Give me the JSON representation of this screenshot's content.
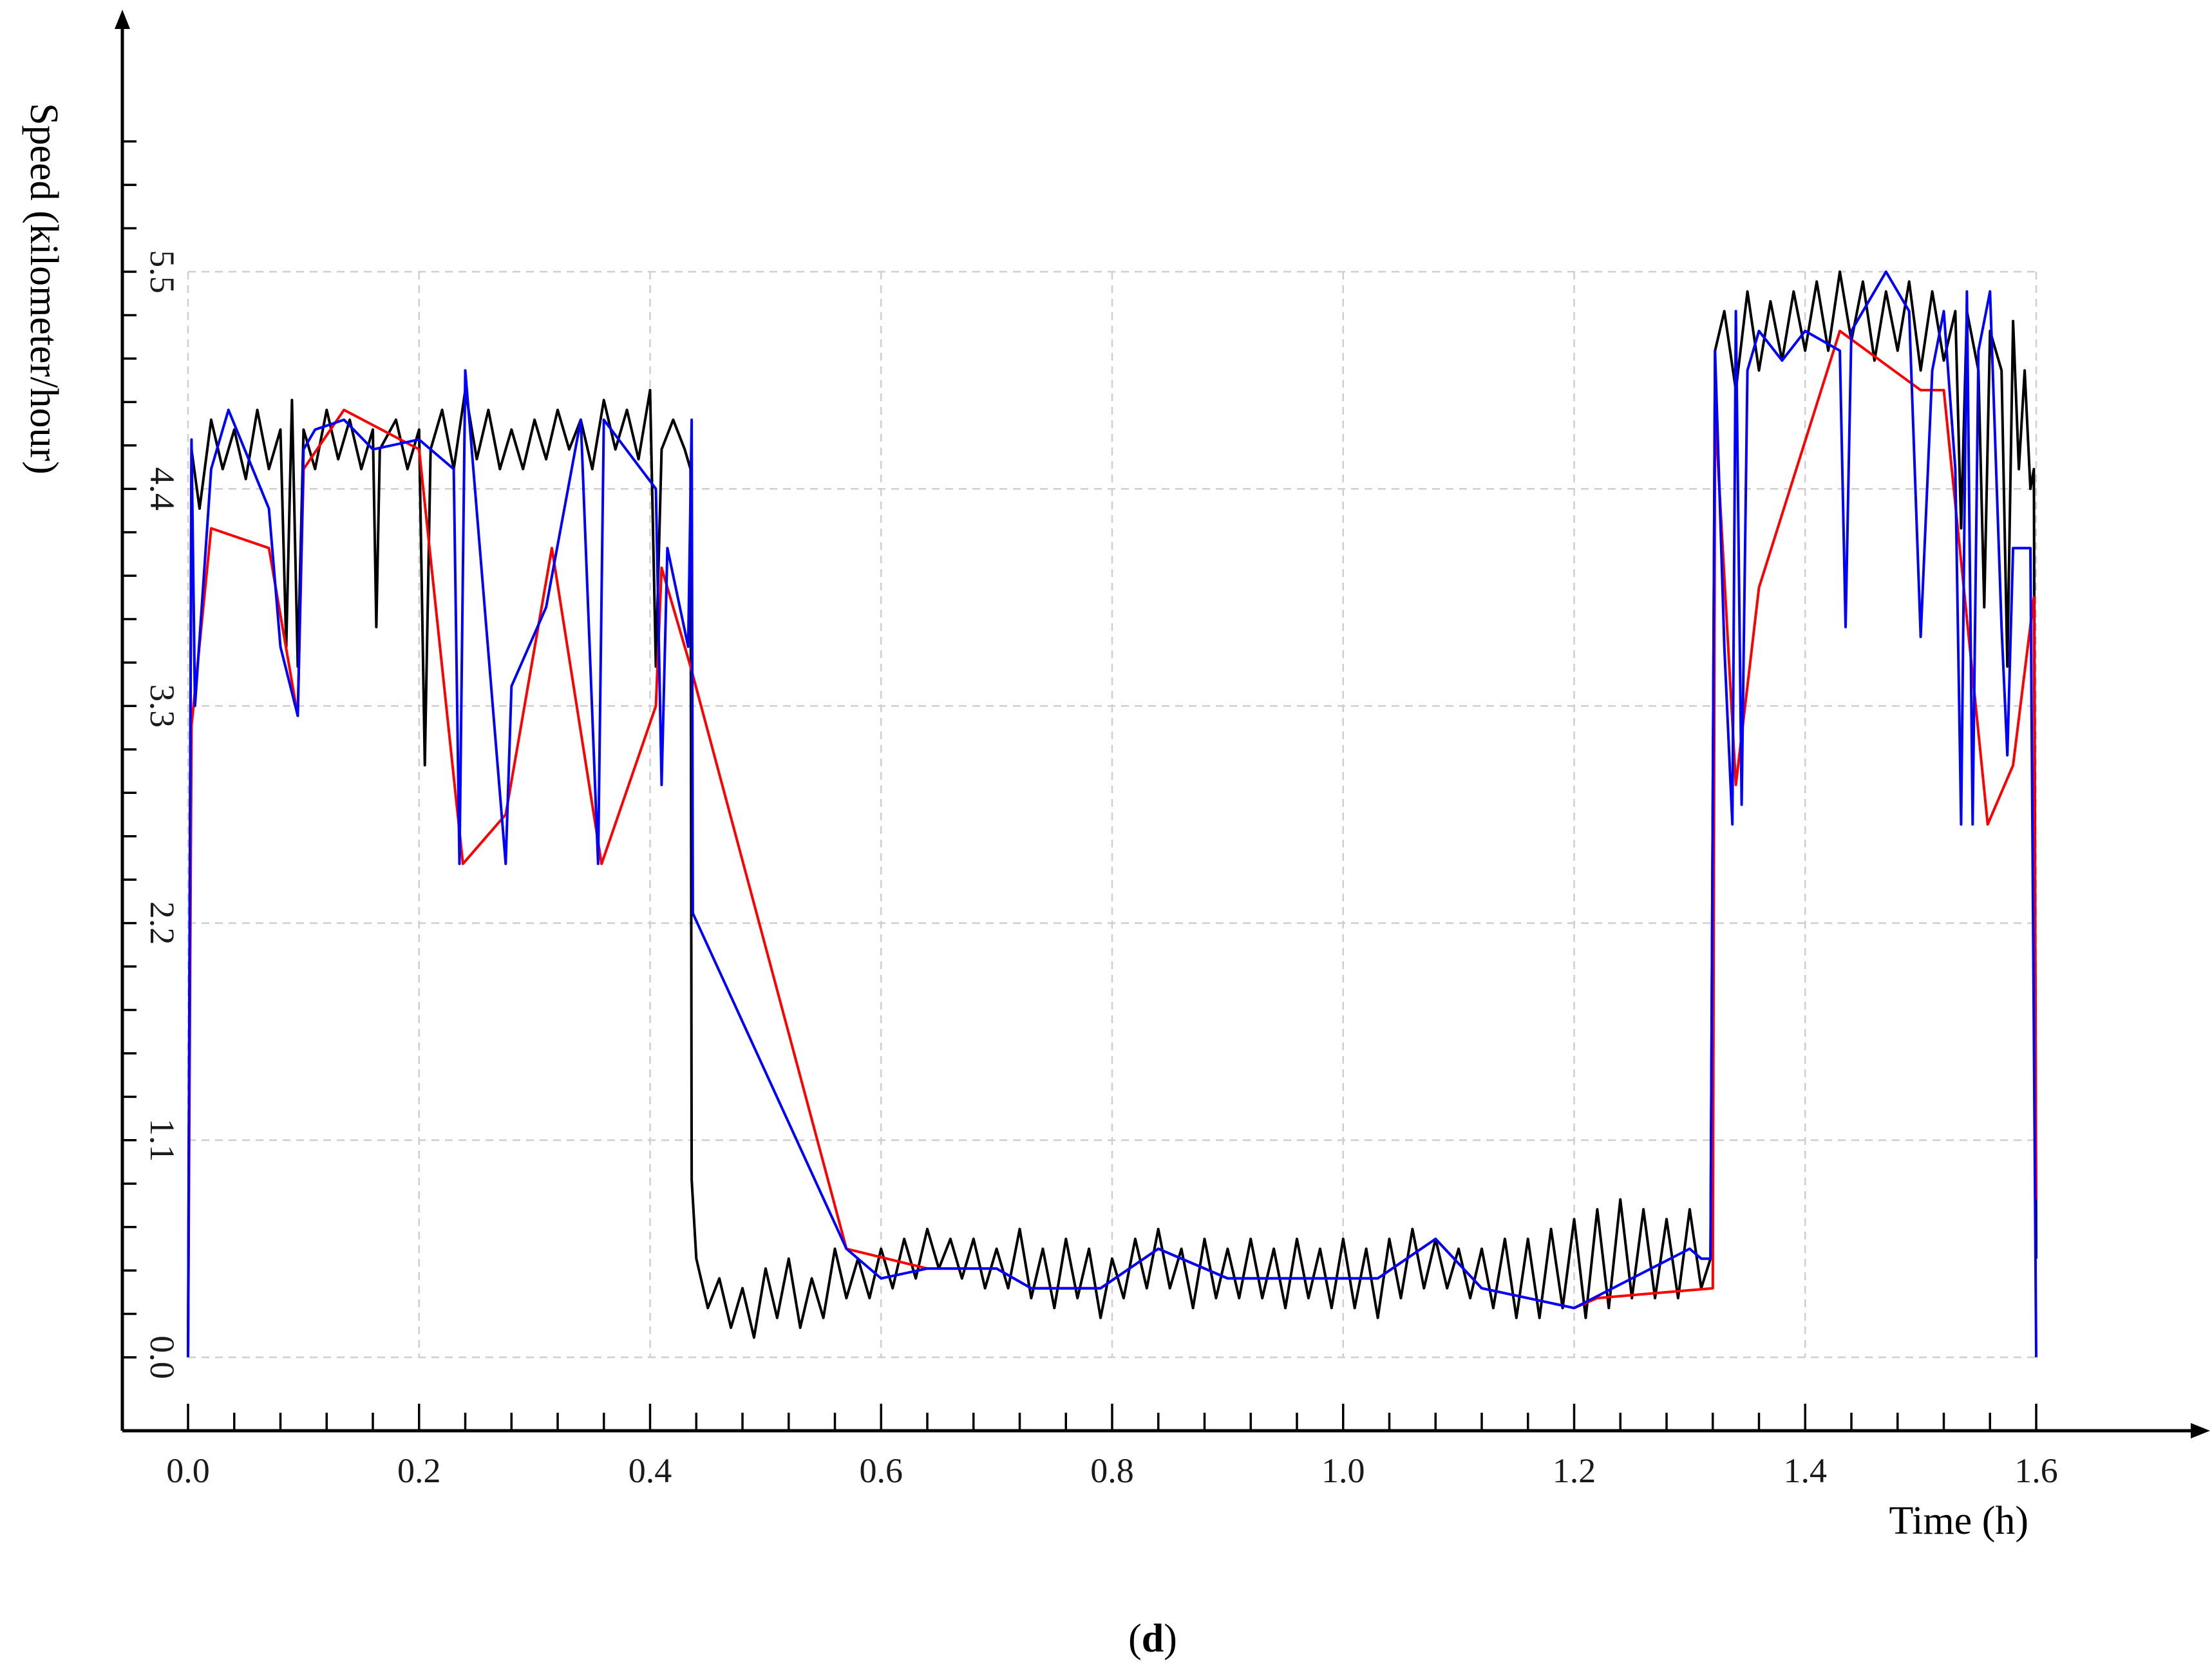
{
  "chart_data": {
    "type": "line",
    "title": "",
    "xlabel": "Time (h)",
    "ylabel": "Speed (kilometer/hour)",
    "caption": {
      "open": "(",
      "letter": "d",
      "close": ")"
    },
    "xlim": [
      0.0,
      1.6
    ],
    "ylim": [
      0.0,
      5.5
    ],
    "x_ticks": [
      0.0,
      0.2,
      0.4,
      0.6,
      0.8,
      1.0,
      1.2,
      1.4,
      1.6
    ],
    "x_tick_labels": [
      "0.0",
      "0.2",
      "0.4",
      "0.6",
      "0.8",
      "1.0",
      "1.2",
      "1.4",
      "1.6"
    ],
    "y_ticks": [
      0.0,
      1.1,
      2.2,
      3.3,
      4.4,
      5.5
    ],
    "y_tick_labels": [
      "0.0",
      "1.1",
      "2.2",
      "3.3",
      "4.4",
      "5.5"
    ],
    "grid": true,
    "legend": "none",
    "series": [
      {
        "color": "#000000",
        "values": [
          [
            0.0,
            0.0
          ],
          [
            0.003,
            4.6
          ],
          [
            0.01,
            4.3
          ],
          [
            0.02,
            4.75
          ],
          [
            0.03,
            4.5
          ],
          [
            0.04,
            4.7
          ],
          [
            0.05,
            4.45
          ],
          [
            0.06,
            4.8
          ],
          [
            0.07,
            4.5
          ],
          [
            0.08,
            4.7
          ],
          [
            0.085,
            3.6
          ],
          [
            0.09,
            4.85
          ],
          [
            0.095,
            3.5
          ],
          [
            0.1,
            4.7
          ],
          [
            0.11,
            4.5
          ],
          [
            0.12,
            4.8
          ],
          [
            0.13,
            4.55
          ],
          [
            0.14,
            4.75
          ],
          [
            0.15,
            4.5
          ],
          [
            0.16,
            4.7
          ],
          [
            0.163,
            3.7
          ],
          [
            0.166,
            4.6
          ],
          [
            0.18,
            4.75
          ],
          [
            0.19,
            4.5
          ],
          [
            0.2,
            4.7
          ],
          [
            0.205,
            3.0
          ],
          [
            0.21,
            4.6
          ],
          [
            0.22,
            4.8
          ],
          [
            0.23,
            4.5
          ],
          [
            0.24,
            4.9
          ],
          [
            0.25,
            4.55
          ],
          [
            0.26,
            4.8
          ],
          [
            0.27,
            4.5
          ],
          [
            0.28,
            4.7
          ],
          [
            0.29,
            4.5
          ],
          [
            0.3,
            4.75
          ],
          [
            0.31,
            4.55
          ],
          [
            0.32,
            4.8
          ],
          [
            0.33,
            4.6
          ],
          [
            0.34,
            4.75
          ],
          [
            0.35,
            4.5
          ],
          [
            0.36,
            4.85
          ],
          [
            0.37,
            4.6
          ],
          [
            0.38,
            4.8
          ],
          [
            0.39,
            4.55
          ],
          [
            0.4,
            4.9
          ],
          [
            0.405,
            3.5
          ],
          [
            0.41,
            4.6
          ],
          [
            0.42,
            4.75
          ],
          [
            0.43,
            4.6
          ],
          [
            0.435,
            4.5
          ],
          [
            0.436,
            0.9
          ],
          [
            0.44,
            0.5
          ],
          [
            0.45,
            0.25
          ],
          [
            0.46,
            0.4
          ],
          [
            0.47,
            0.15
          ],
          [
            0.48,
            0.35
          ],
          [
            0.49,
            0.1
          ],
          [
            0.5,
            0.45
          ],
          [
            0.51,
            0.2
          ],
          [
            0.52,
            0.5
          ],
          [
            0.53,
            0.15
          ],
          [
            0.54,
            0.4
          ],
          [
            0.55,
            0.2
          ],
          [
            0.56,
            0.55
          ],
          [
            0.57,
            0.3
          ],
          [
            0.58,
            0.5
          ],
          [
            0.59,
            0.3
          ],
          [
            0.6,
            0.55
          ],
          [
            0.61,
            0.35
          ],
          [
            0.62,
            0.6
          ],
          [
            0.63,
            0.4
          ],
          [
            0.64,
            0.65
          ],
          [
            0.65,
            0.45
          ],
          [
            0.66,
            0.6
          ],
          [
            0.67,
            0.4
          ],
          [
            0.68,
            0.6
          ],
          [
            0.69,
            0.35
          ],
          [
            0.7,
            0.55
          ],
          [
            0.71,
            0.35
          ],
          [
            0.72,
            0.65
          ],
          [
            0.73,
            0.3
          ],
          [
            0.74,
            0.55
          ],
          [
            0.75,
            0.25
          ],
          [
            0.76,
            0.6
          ],
          [
            0.77,
            0.3
          ],
          [
            0.78,
            0.55
          ],
          [
            0.79,
            0.2
          ],
          [
            0.8,
            0.5
          ],
          [
            0.81,
            0.3
          ],
          [
            0.82,
            0.6
          ],
          [
            0.83,
            0.35
          ],
          [
            0.84,
            0.65
          ],
          [
            0.85,
            0.35
          ],
          [
            0.86,
            0.55
          ],
          [
            0.87,
            0.25
          ],
          [
            0.88,
            0.6
          ],
          [
            0.89,
            0.3
          ],
          [
            0.9,
            0.55
          ],
          [
            0.91,
            0.3
          ],
          [
            0.92,
            0.6
          ],
          [
            0.93,
            0.3
          ],
          [
            0.94,
            0.55
          ],
          [
            0.95,
            0.25
          ],
          [
            0.96,
            0.6
          ],
          [
            0.97,
            0.3
          ],
          [
            0.98,
            0.55
          ],
          [
            0.99,
            0.25
          ],
          [
            1.0,
            0.6
          ],
          [
            1.01,
            0.25
          ],
          [
            1.02,
            0.55
          ],
          [
            1.03,
            0.2
          ],
          [
            1.04,
            0.6
          ],
          [
            1.05,
            0.3
          ],
          [
            1.06,
            0.65
          ],
          [
            1.07,
            0.35
          ],
          [
            1.08,
            0.6
          ],
          [
            1.09,
            0.35
          ],
          [
            1.1,
            0.55
          ],
          [
            1.11,
            0.3
          ],
          [
            1.12,
            0.55
          ],
          [
            1.13,
            0.25
          ],
          [
            1.14,
            0.6
          ],
          [
            1.15,
            0.2
          ],
          [
            1.16,
            0.6
          ],
          [
            1.17,
            0.2
          ],
          [
            1.18,
            0.65
          ],
          [
            1.19,
            0.25
          ],
          [
            1.2,
            0.7
          ],
          [
            1.21,
            0.2
          ],
          [
            1.22,
            0.75
          ],
          [
            1.23,
            0.25
          ],
          [
            1.24,
            0.8
          ],
          [
            1.25,
            0.3
          ],
          [
            1.26,
            0.75
          ],
          [
            1.27,
            0.3
          ],
          [
            1.28,
            0.7
          ],
          [
            1.29,
            0.3
          ],
          [
            1.3,
            0.75
          ],
          [
            1.31,
            0.35
          ],
          [
            1.318,
            0.5
          ],
          [
            1.322,
            5.1
          ],
          [
            1.33,
            5.3
          ],
          [
            1.34,
            4.9
          ],
          [
            1.35,
            5.4
          ],
          [
            1.36,
            5.0
          ],
          [
            1.37,
            5.35
          ],
          [
            1.38,
            5.05
          ],
          [
            1.39,
            5.4
          ],
          [
            1.4,
            5.1
          ],
          [
            1.41,
            5.45
          ],
          [
            1.42,
            5.1
          ],
          [
            1.43,
            5.5
          ],
          [
            1.44,
            5.15
          ],
          [
            1.45,
            5.45
          ],
          [
            1.46,
            5.05
          ],
          [
            1.47,
            5.4
          ],
          [
            1.48,
            5.1
          ],
          [
            1.49,
            5.45
          ],
          [
            1.5,
            5.0
          ],
          [
            1.51,
            5.4
          ],
          [
            1.52,
            5.05
          ],
          [
            1.53,
            5.3
          ],
          [
            1.535,
            4.2
          ],
          [
            1.54,
            5.3
          ],
          [
            1.55,
            5.0
          ],
          [
            1.555,
            3.8
          ],
          [
            1.56,
            5.2
          ],
          [
            1.57,
            5.0
          ],
          [
            1.575,
            3.5
          ],
          [
            1.58,
            5.25
          ],
          [
            1.585,
            4.5
          ],
          [
            1.59,
            5.0
          ],
          [
            1.595,
            4.4
          ],
          [
            1.598,
            4.5
          ],
          [
            1.6,
            0.5
          ]
        ]
      },
      {
        "color": "#ff0000",
        "values": [
          [
            0.0,
            0.0
          ],
          [
            0.003,
            3.2
          ],
          [
            0.02,
            4.2
          ],
          [
            0.07,
            4.1
          ],
          [
            0.095,
            3.25
          ],
          [
            0.1,
            4.5
          ],
          [
            0.135,
            4.8
          ],
          [
            0.2,
            4.6
          ],
          [
            0.238,
            2.5
          ],
          [
            0.275,
            2.75
          ],
          [
            0.315,
            4.1
          ],
          [
            0.358,
            2.5
          ],
          [
            0.405,
            3.3
          ],
          [
            0.41,
            4.0
          ],
          [
            0.435,
            3.5
          ],
          [
            0.57,
            0.55
          ],
          [
            0.64,
            0.45
          ],
          [
            0.7,
            0.45
          ],
          [
            0.73,
            0.35
          ],
          [
            0.79,
            0.35
          ],
          [
            0.84,
            0.55
          ],
          [
            0.9,
            0.4
          ],
          [
            1.03,
            0.4
          ],
          [
            1.08,
            0.6
          ],
          [
            1.12,
            0.35
          ],
          [
            1.2,
            0.25
          ],
          [
            1.22,
            0.3
          ],
          [
            1.32,
            0.35
          ],
          [
            1.322,
            4.8
          ],
          [
            1.34,
            2.9
          ],
          [
            1.36,
            3.9
          ],
          [
            1.43,
            5.2
          ],
          [
            1.5,
            4.9
          ],
          [
            1.52,
            4.9
          ],
          [
            1.558,
            2.7
          ],
          [
            1.58,
            3.0
          ],
          [
            1.598,
            3.85
          ],
          [
            1.6,
            0.8
          ]
        ]
      },
      {
        "color": "#0000ff",
        "values": [
          [
            0.0,
            0.0
          ],
          [
            0.003,
            4.65
          ],
          [
            0.006,
            3.3
          ],
          [
            0.02,
            4.5
          ],
          [
            0.035,
            4.8
          ],
          [
            0.07,
            4.3
          ],
          [
            0.08,
            3.6
          ],
          [
            0.095,
            3.25
          ],
          [
            0.1,
            4.6
          ],
          [
            0.11,
            4.7
          ],
          [
            0.135,
            4.75
          ],
          [
            0.16,
            4.6
          ],
          [
            0.2,
            4.65
          ],
          [
            0.23,
            4.5
          ],
          [
            0.235,
            2.5
          ],
          [
            0.24,
            5.0
          ],
          [
            0.275,
            2.5
          ],
          [
            0.28,
            3.4
          ],
          [
            0.31,
            3.8
          ],
          [
            0.34,
            4.75
          ],
          [
            0.355,
            2.5
          ],
          [
            0.36,
            4.75
          ],
          [
            0.405,
            4.4
          ],
          [
            0.41,
            2.9
          ],
          [
            0.415,
            4.1
          ],
          [
            0.433,
            3.6
          ],
          [
            0.436,
            4.75
          ],
          [
            0.437,
            2.25
          ],
          [
            0.57,
            0.55
          ],
          [
            0.6,
            0.4
          ],
          [
            0.64,
            0.45
          ],
          [
            0.7,
            0.45
          ],
          [
            0.73,
            0.35
          ],
          [
            0.79,
            0.35
          ],
          [
            0.84,
            0.55
          ],
          [
            0.9,
            0.4
          ],
          [
            1.03,
            0.4
          ],
          [
            1.08,
            0.6
          ],
          [
            1.12,
            0.35
          ],
          [
            1.2,
            0.25
          ],
          [
            1.3,
            0.55
          ],
          [
            1.31,
            0.5
          ],
          [
            1.318,
            0.5
          ],
          [
            1.322,
            5.1
          ],
          [
            1.33,
            3.6
          ],
          [
            1.337,
            2.7
          ],
          [
            1.34,
            5.3
          ],
          [
            1.345,
            2.8
          ],
          [
            1.35,
            5.0
          ],
          [
            1.36,
            5.2
          ],
          [
            1.38,
            5.05
          ],
          [
            1.4,
            5.2
          ],
          [
            1.43,
            5.1
          ],
          [
            1.435,
            3.7
          ],
          [
            1.44,
            5.2
          ],
          [
            1.47,
            5.5
          ],
          [
            1.49,
            5.3
          ],
          [
            1.5,
            3.65
          ],
          [
            1.51,
            5.0
          ],
          [
            1.52,
            5.3
          ],
          [
            1.53,
            4.5
          ],
          [
            1.535,
            2.7
          ],
          [
            1.54,
            5.4
          ],
          [
            1.545,
            2.7
          ],
          [
            1.55,
            5.1
          ],
          [
            1.56,
            5.4
          ],
          [
            1.57,
            3.7
          ],
          [
            1.575,
            3.05
          ],
          [
            1.58,
            4.1
          ],
          [
            1.59,
            4.1
          ],
          [
            1.595,
            4.1
          ],
          [
            1.6,
            0.0
          ]
        ]
      }
    ]
  }
}
